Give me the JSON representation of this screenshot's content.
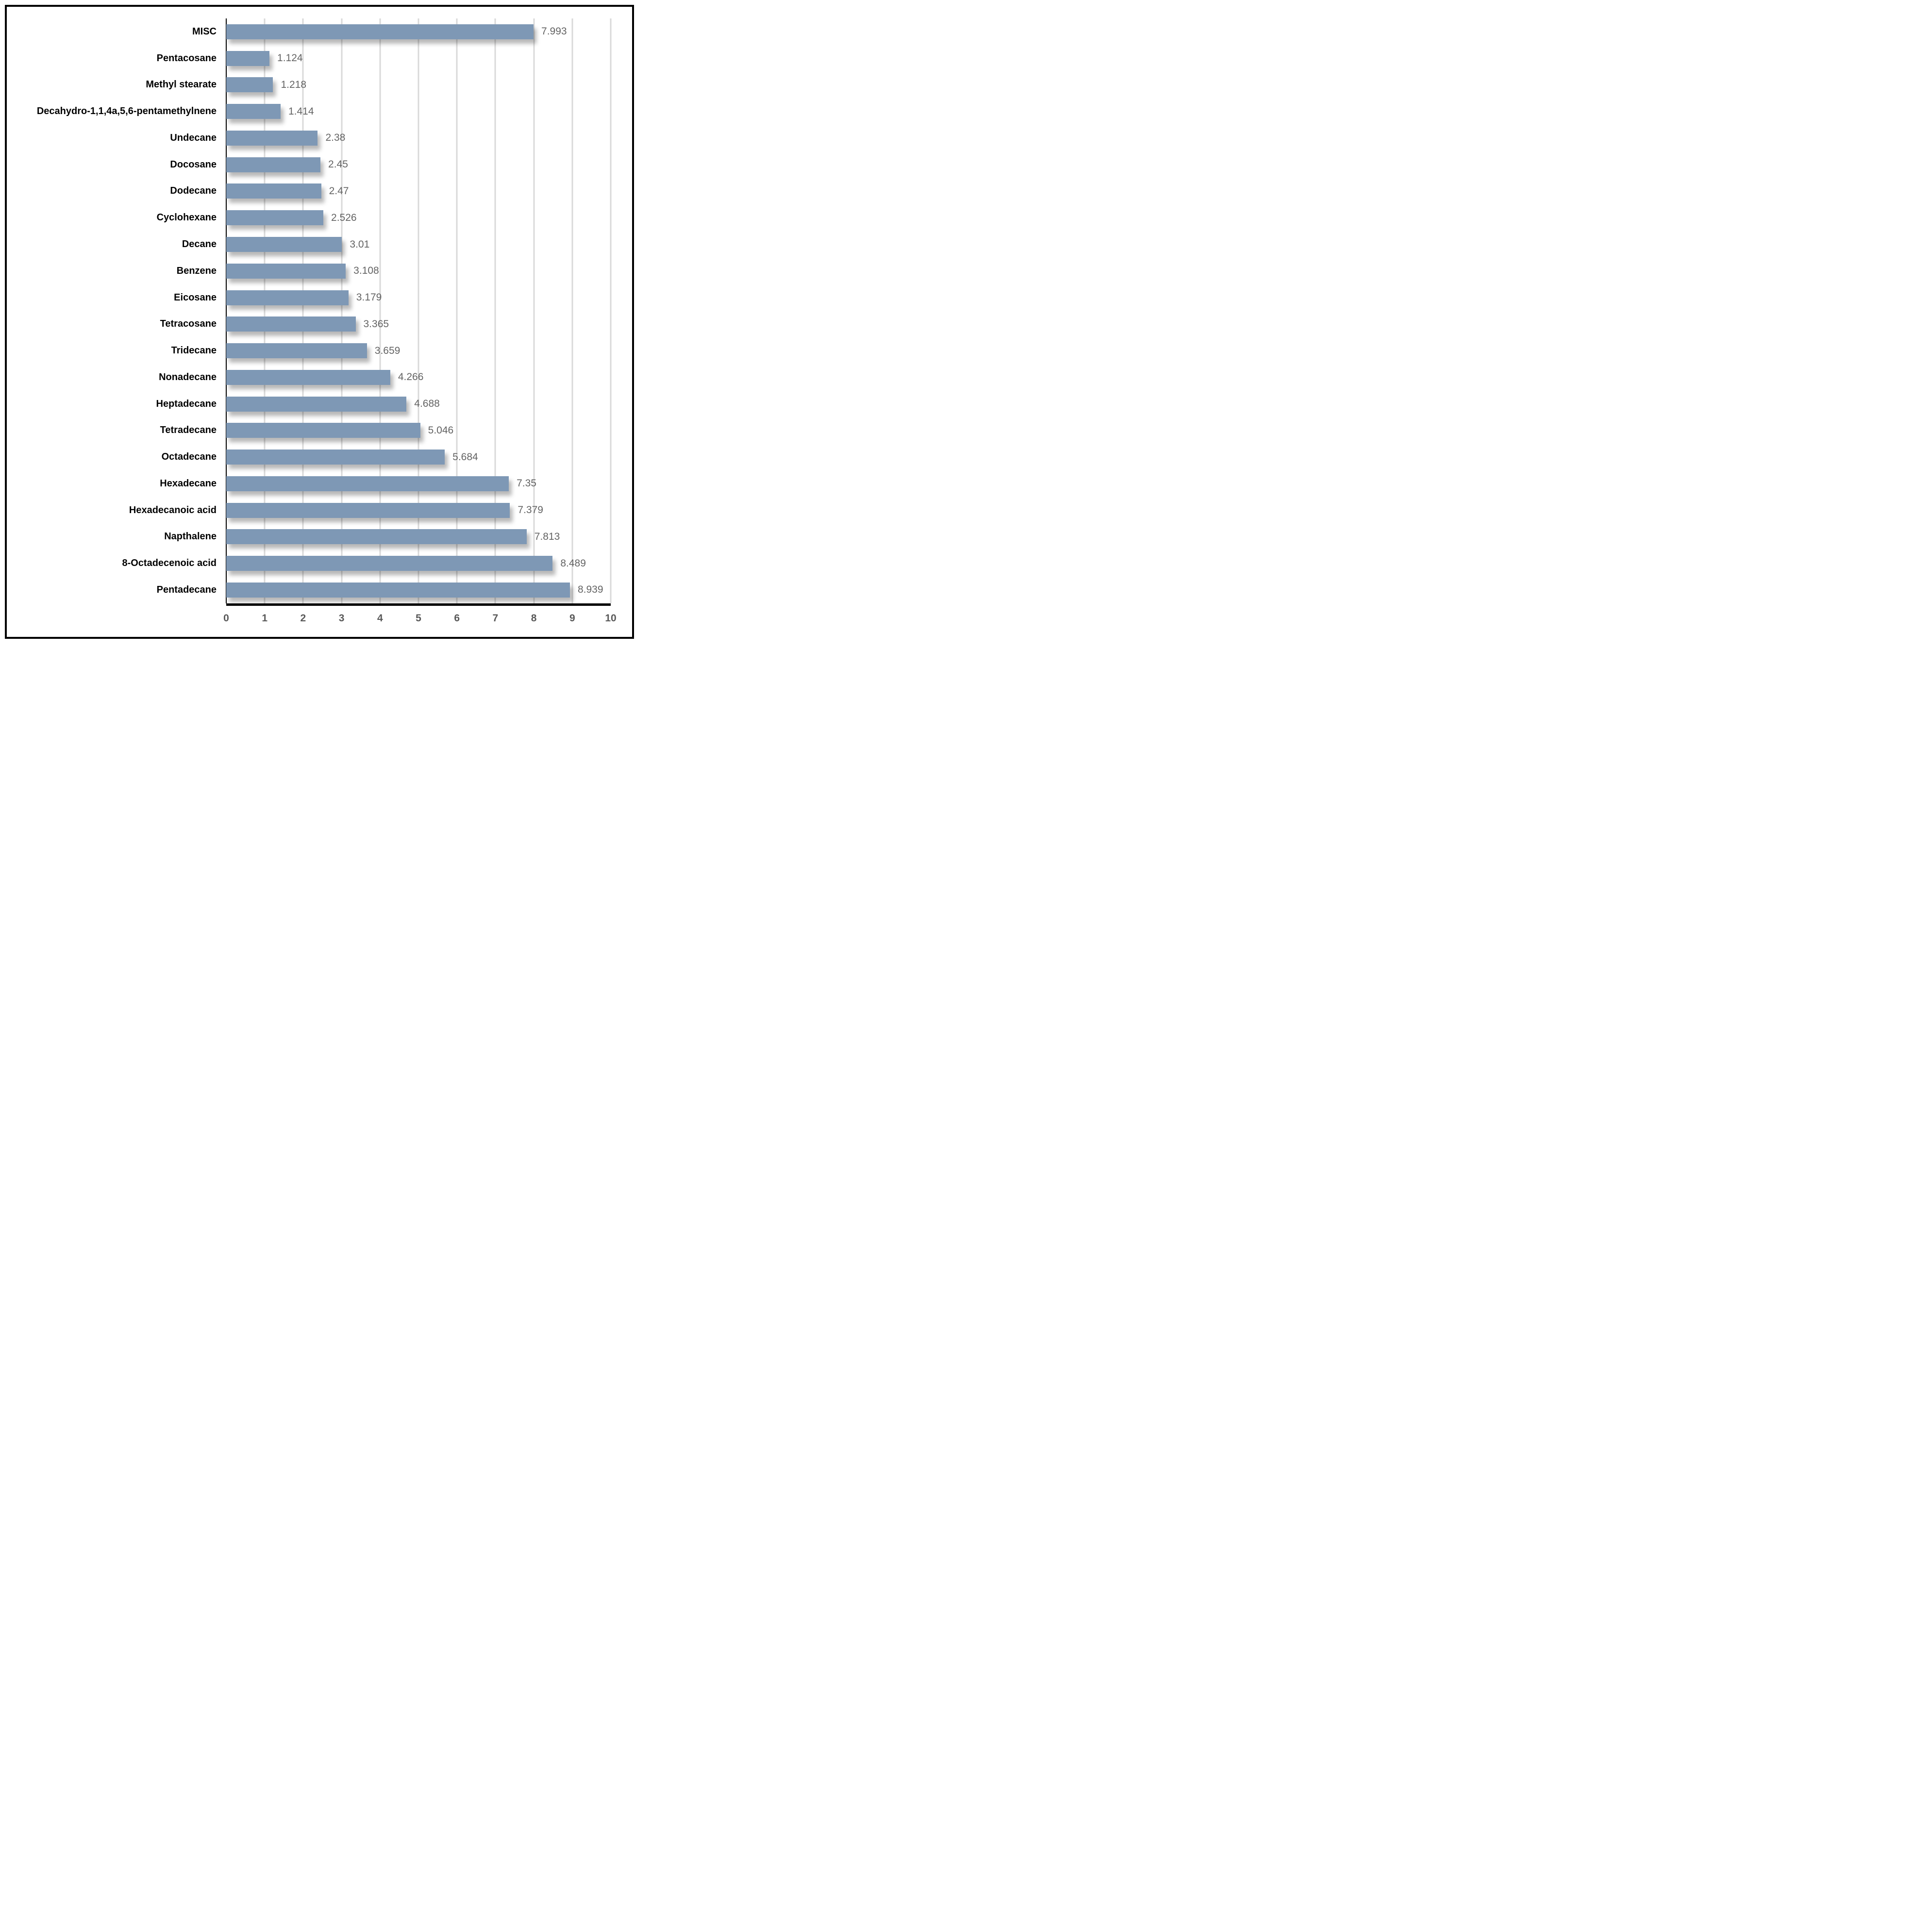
{
  "chart_data": {
    "type": "bar",
    "orientation": "horizontal",
    "title": "",
    "xlabel": "",
    "ylabel": "",
    "xlim": [
      0,
      10
    ],
    "xticks": [
      "0",
      "1",
      "2",
      "3",
      "4",
      "5",
      "6",
      "7",
      "8",
      "9",
      "10"
    ],
    "grid": "vertical",
    "legend": "none",
    "bar_color": "#7e98b5",
    "gridline_color": "#d9d9d9",
    "value_label_color": "#636363",
    "tick_label_color": "#595959",
    "category_label_color": "#000000",
    "points": [
      {
        "category": "MISC",
        "value": 7.993,
        "label": "7.993"
      },
      {
        "category": "Pentacosane",
        "value": 1.124,
        "label": "1.124"
      },
      {
        "category": "Methyl stearate",
        "value": 1.218,
        "label": "1.218"
      },
      {
        "category": "Decahydro-1,1,4a,5,6-pentamethylnene",
        "value": 1.414,
        "label": "1.414"
      },
      {
        "category": "Undecane",
        "value": 2.38,
        "label": "2.38"
      },
      {
        "category": "Docosane",
        "value": 2.45,
        "label": "2.45"
      },
      {
        "category": "Dodecane",
        "value": 2.47,
        "label": "2.47"
      },
      {
        "category": "Cyclohexane",
        "value": 2.526,
        "label": "2.526"
      },
      {
        "category": "Decane",
        "value": 3.01,
        "label": "3.01"
      },
      {
        "category": "Benzene",
        "value": 3.108,
        "label": "3.108"
      },
      {
        "category": "Eicosane",
        "value": 3.179,
        "label": "3.179"
      },
      {
        "category": "Tetracosane",
        "value": 3.365,
        "label": "3.365"
      },
      {
        "category": "Tridecane",
        "value": 3.659,
        "label": "3.659"
      },
      {
        "category": "Nonadecane",
        "value": 4.266,
        "label": "4.266"
      },
      {
        "category": "Heptadecane",
        "value": 4.688,
        "label": "4.688"
      },
      {
        "category": "Tetradecane",
        "value": 5.046,
        "label": "5.046"
      },
      {
        "category": "Octadecane",
        "value": 5.684,
        "label": "5.684"
      },
      {
        "category": "Hexadecane",
        "value": 7.35,
        "label": "7.35"
      },
      {
        "category": "Hexadecanoic acid",
        "value": 7.379,
        "label": "7.379"
      },
      {
        "category": "Napthalene",
        "value": 7.813,
        "label": "7.813"
      },
      {
        "category": "8-Octadecenoic acid",
        "value": 8.489,
        "label": "8.489"
      },
      {
        "category": "Pentadecane",
        "value": 8.939,
        "label": "8.939"
      }
    ]
  }
}
